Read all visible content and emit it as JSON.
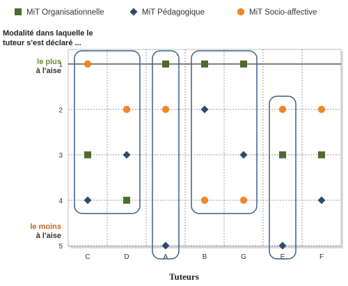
{
  "chart_data": {
    "type": "scatter",
    "xlabel": "Tuteurs",
    "ylabel_lines": [
      "Modalité dans laquelle le",
      "tuteur s'est déclaré ..."
    ],
    "top_label": [
      "le plus",
      "à l'aise"
    ],
    "bottom_label": [
      "le moins",
      "à l'aise"
    ],
    "categories": [
      "C",
      "D",
      "A",
      "B",
      "G",
      "E",
      "F"
    ],
    "y_ticks": [
      "1",
      "2",
      "3",
      "4",
      "5"
    ],
    "ylim": [
      1,
      5
    ],
    "y_inverted": true,
    "grid": true,
    "legend_position": "top",
    "series": [
      {
        "name": "MiT Organisationnelle",
        "marker": "square",
        "color": "#4e6b2c",
        "values": [
          3,
          4,
          1,
          1,
          1,
          3,
          3
        ]
      },
      {
        "name": "MiT Pédagogique",
        "marker": "diamond",
        "color": "#2b4a6f",
        "values": [
          4,
          3,
          5,
          2,
          3,
          5,
          4
        ]
      },
      {
        "name": "MiT Socio-affective",
        "marker": "circle",
        "color": "#f0862a",
        "values": [
          1,
          2,
          2,
          4,
          4,
          2,
          2
        ]
      }
    ],
    "groups": [
      {
        "categories": [
          "C",
          "D"
        ],
        "y_range": [
          1,
          4
        ]
      },
      {
        "categories": [
          "A"
        ],
        "y_range": [
          1,
          5
        ]
      },
      {
        "categories": [
          "B",
          "G"
        ],
        "y_range": [
          1,
          4
        ]
      },
      {
        "categories": [
          "E"
        ],
        "y_range": [
          2,
          5
        ]
      }
    ],
    "group_outline_color": "#3a5f85"
  }
}
